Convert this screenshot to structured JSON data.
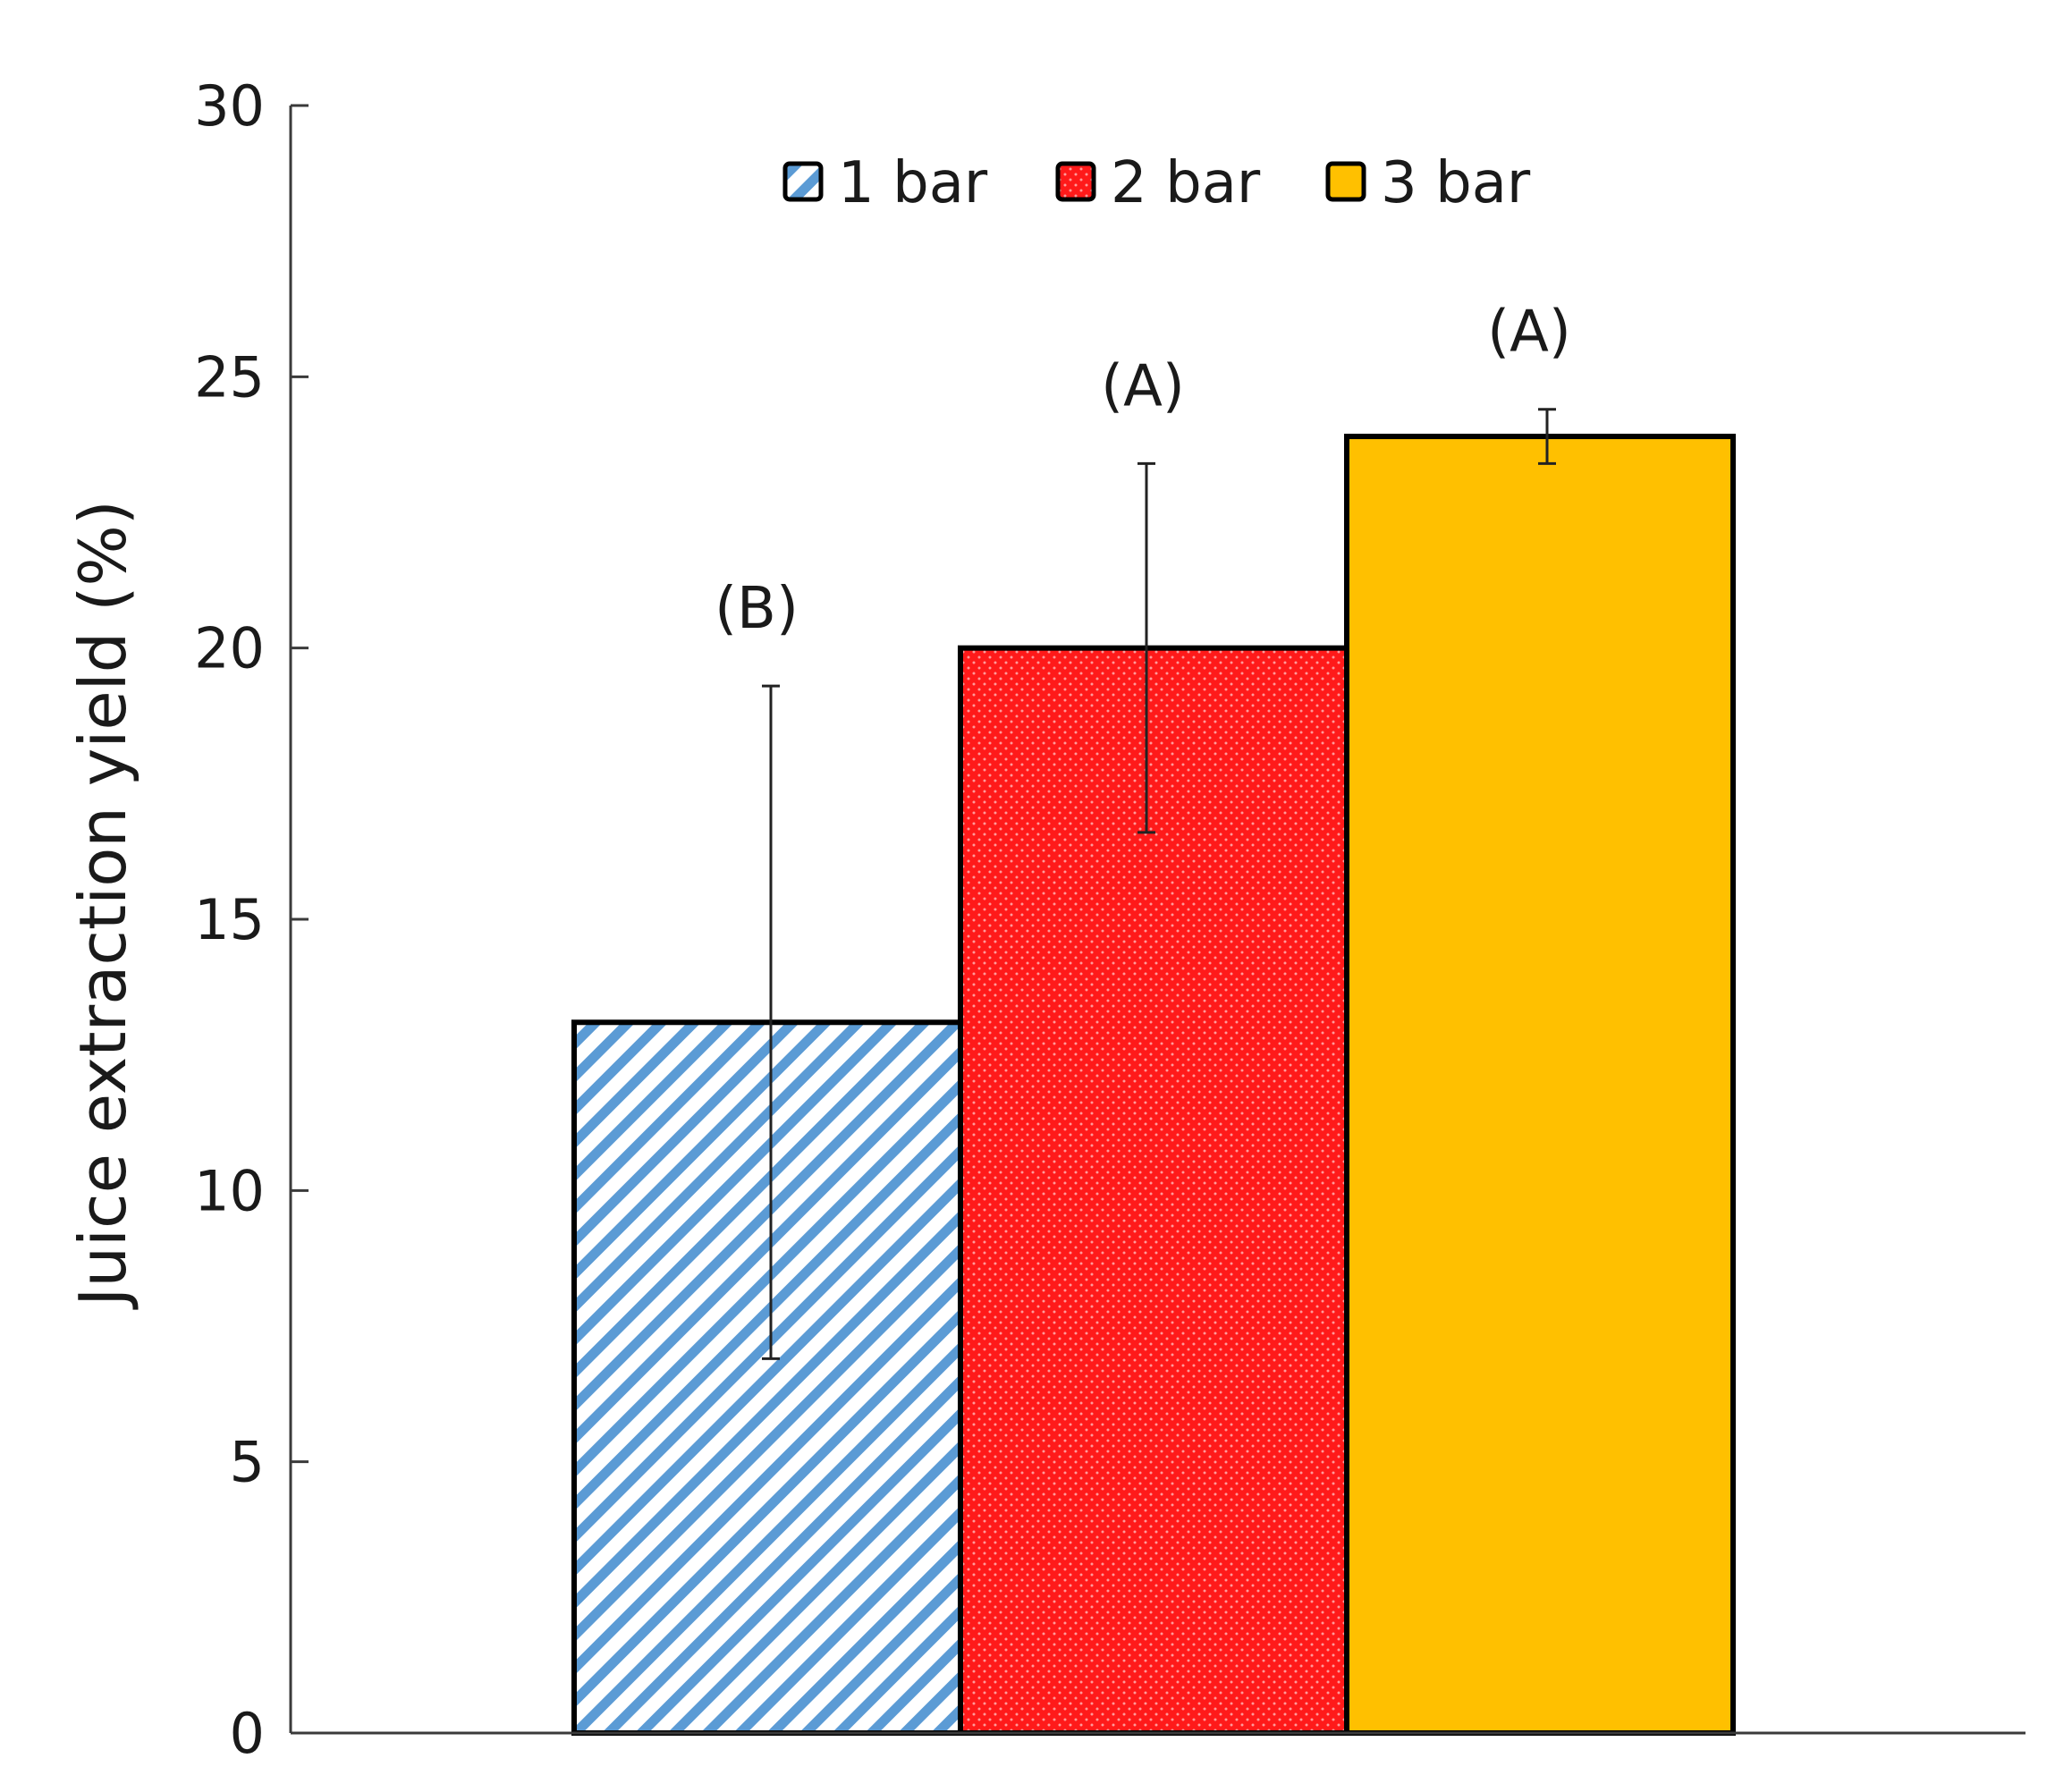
{
  "chart_data": {
    "type": "bar",
    "title": "",
    "xlabel": "",
    "ylabel": "Juice extraction yield (%)",
    "ylim": [
      0,
      30
    ],
    "yticks": [
      0,
      5,
      10,
      15,
      20,
      25,
      30
    ],
    "grid": false,
    "legend_position": "top-center",
    "series": [
      {
        "name": "1 bar",
        "value": 13.1,
        "error": 6.2,
        "group": "(B)",
        "color": "#5b9bd5",
        "pattern": "diagonal-hatch"
      },
      {
        "name": "2 bar",
        "value": 20.0,
        "error": 3.4,
        "group": "(A)",
        "color": "#ff1a1a",
        "pattern": "dots"
      },
      {
        "name": "3 bar",
        "value": 23.9,
        "error": 0.5,
        "group": "(A)",
        "color": "#ffc000",
        "pattern": "solid"
      }
    ]
  }
}
